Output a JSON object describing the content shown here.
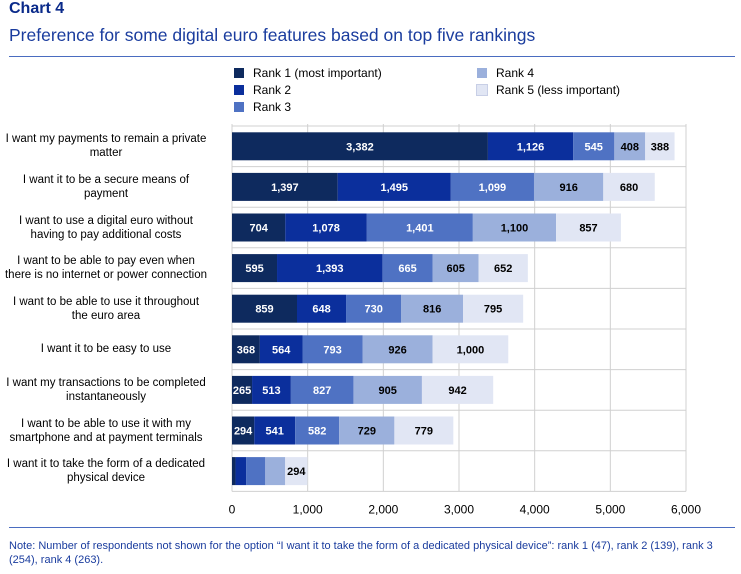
{
  "header": {
    "chart_number": "Chart 4",
    "title": "Preference for some digital euro features based on top five rankings"
  },
  "chart_data": {
    "type": "bar",
    "orientation": "horizontal",
    "stacked": true,
    "title": "Preference for some digital euro features based on top five rankings",
    "xlabel": "",
    "ylabel": "",
    "xlim": [
      0,
      6000
    ],
    "xticks": [
      0,
      1000,
      2000,
      3000,
      4000,
      5000,
      6000
    ],
    "xtick_labels": [
      "0",
      "1,000",
      "2,000",
      "3,000",
      "4,000",
      "5,000",
      "6,000"
    ],
    "grid": "vertical",
    "legend_position": "top",
    "categories": [
      [
        "I want my payments to remain a private",
        "matter"
      ],
      [
        "I want it to be a secure means of",
        "payment"
      ],
      [
        "I want to use a digital euro without",
        "having to pay additional costs"
      ],
      [
        "I want to be able to pay even when",
        "there is no internet or power connection"
      ],
      [
        "I want to be able to use it throughout",
        "the euro area"
      ],
      [
        "I want it to be easy to use"
      ],
      [
        "I want my transactions to be completed",
        "instantaneously"
      ],
      [
        "I want to be able to use it with my",
        "smartphone and at payment terminals"
      ],
      [
        "I want it to take the form of a dedicated",
        "physical device"
      ]
    ],
    "series": [
      {
        "name": "Rank 1 (most important)",
        "color": "#0e2a5e",
        "label_color": "#ffffff",
        "values": [
          3382,
          1397,
          704,
          595,
          859,
          368,
          265,
          294,
          47
        ],
        "labels": [
          "3,382",
          "1,397",
          "704",
          "595",
          "859",
          "368",
          "265",
          "294",
          ""
        ]
      },
      {
        "name": "Rank 2",
        "color": "#0b2f9c",
        "label_color": "#ffffff",
        "values": [
          1126,
          1495,
          1078,
          1393,
          648,
          564,
          513,
          541,
          139
        ],
        "labels": [
          "1,126",
          "1,495",
          "1,078",
          "1,393",
          "648",
          "564",
          "513",
          "541",
          ""
        ]
      },
      {
        "name": "Rank 3",
        "color": "#4f72c3",
        "label_color": "#ffffff",
        "values": [
          545,
          1099,
          1401,
          665,
          730,
          793,
          827,
          582,
          254
        ],
        "labels": [
          "545",
          "1,099",
          "1,401",
          "665",
          "730",
          "793",
          "827",
          "582",
          ""
        ]
      },
      {
        "name": "Rank 4",
        "color": "#9bb0dc",
        "label_color": "#000000",
        "values": [
          408,
          916,
          1100,
          605,
          816,
          926,
          905,
          729,
          263
        ],
        "labels": [
          "408",
          "916",
          "1,100",
          "605",
          "816",
          "926",
          "905",
          "729",
          ""
        ]
      },
      {
        "name": "Rank 5 (less important)",
        "color": "#e1e6f4",
        "label_color": "#000000",
        "values": [
          388,
          680,
          857,
          652,
          795,
          1000,
          942,
          779,
          294
        ],
        "labels": [
          "388",
          "680",
          "857",
          "652",
          "795",
          "1,000",
          "942",
          "779",
          "294"
        ]
      }
    ]
  },
  "footnote": "Note: Number of respondents not shown for the option “I want it to take the form of a dedicated physical device”: rank 1 (47), rank 2 (139), rank 3 (254), rank 4 (263)."
}
